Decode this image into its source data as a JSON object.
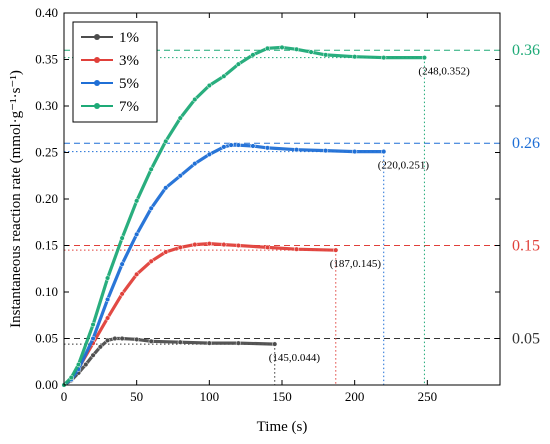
{
  "chart_data": {
    "type": "line",
    "xlabel": "Time (s)",
    "ylabel": "Instantaneous reaction rate (mmol·g⁻¹·s⁻¹)",
    "xlim": [
      0,
      300
    ],
    "ylim": [
      0,
      0.4
    ],
    "x_ticks": [
      "0",
      "50",
      "100",
      "150",
      "200",
      "250"
    ],
    "y_ticks": [
      "0.00",
      "0.05",
      "0.10",
      "0.15",
      "0.20",
      "0.25",
      "0.30",
      "0.35",
      "0.40"
    ],
    "grid": false,
    "legend_position": "top-left",
    "series": [
      {
        "name": "1%",
        "color": "#4d4d4d",
        "x": [
          0,
          5,
          10,
          15,
          20,
          25,
          30,
          35,
          40,
          50,
          60,
          80,
          100,
          120,
          145
        ],
        "y": [
          0,
          0.005,
          0.013,
          0.022,
          0.032,
          0.041,
          0.048,
          0.05,
          0.05,
          0.049,
          0.047,
          0.046,
          0.045,
          0.045,
          0.044
        ]
      },
      {
        "name": "3%",
        "color": "#e0403a",
        "x": [
          0,
          5,
          10,
          20,
          30,
          40,
          50,
          60,
          70,
          80,
          90,
          100,
          110,
          120,
          140,
          160,
          187
        ],
        "y": [
          0,
          0.006,
          0.018,
          0.045,
          0.072,
          0.098,
          0.119,
          0.133,
          0.143,
          0.148,
          0.151,
          0.152,
          0.151,
          0.15,
          0.148,
          0.146,
          0.145
        ]
      },
      {
        "name": "5%",
        "color": "#1f6fd6",
        "x": [
          0,
          5,
          10,
          20,
          30,
          40,
          50,
          60,
          70,
          80,
          90,
          100,
          110,
          115,
          120,
          130,
          140,
          160,
          180,
          200,
          220
        ],
        "y": [
          0,
          0.006,
          0.017,
          0.05,
          0.092,
          0.13,
          0.162,
          0.19,
          0.212,
          0.225,
          0.238,
          0.248,
          0.256,
          0.258,
          0.258,
          0.257,
          0.255,
          0.253,
          0.252,
          0.251,
          0.251
        ]
      },
      {
        "name": "7%",
        "color": "#1eaa77",
        "x": [
          0,
          5,
          10,
          20,
          30,
          40,
          50,
          60,
          70,
          80,
          90,
          100,
          110,
          120,
          130,
          140,
          150,
          160,
          170,
          180,
          200,
          220,
          248
        ],
        "y": [
          0,
          0.008,
          0.022,
          0.065,
          0.115,
          0.158,
          0.198,
          0.232,
          0.262,
          0.287,
          0.307,
          0.322,
          0.332,
          0.345,
          0.355,
          0.362,
          0.363,
          0.361,
          0.358,
          0.355,
          0.353,
          0.352,
          0.352
        ]
      }
    ],
    "max_lines": [
      {
        "value": 0.05,
        "label": "0.05",
        "color": "#333333"
      },
      {
        "value": 0.15,
        "label": "0.15",
        "color": "#e0403a"
      },
      {
        "value": 0.26,
        "label": "0.26",
        "color": "#1f6fd6"
      },
      {
        "value": 0.36,
        "label": "0.36",
        "color": "#1eaa77"
      }
    ],
    "annotations": [
      {
        "x": 145,
        "y": 0.044,
        "label": "(145,0.044)",
        "color": "#333333"
      },
      {
        "x": 187,
        "y": 0.145,
        "label": "(187,0.145)",
        "color": "#e0403a"
      },
      {
        "x": 220,
        "y": 0.251,
        "label": "(220,0.251)",
        "color": "#1f6fd6"
      },
      {
        "x": 248,
        "y": 0.352,
        "label": "(248,0.352)",
        "color": "#1eaa77"
      }
    ]
  }
}
